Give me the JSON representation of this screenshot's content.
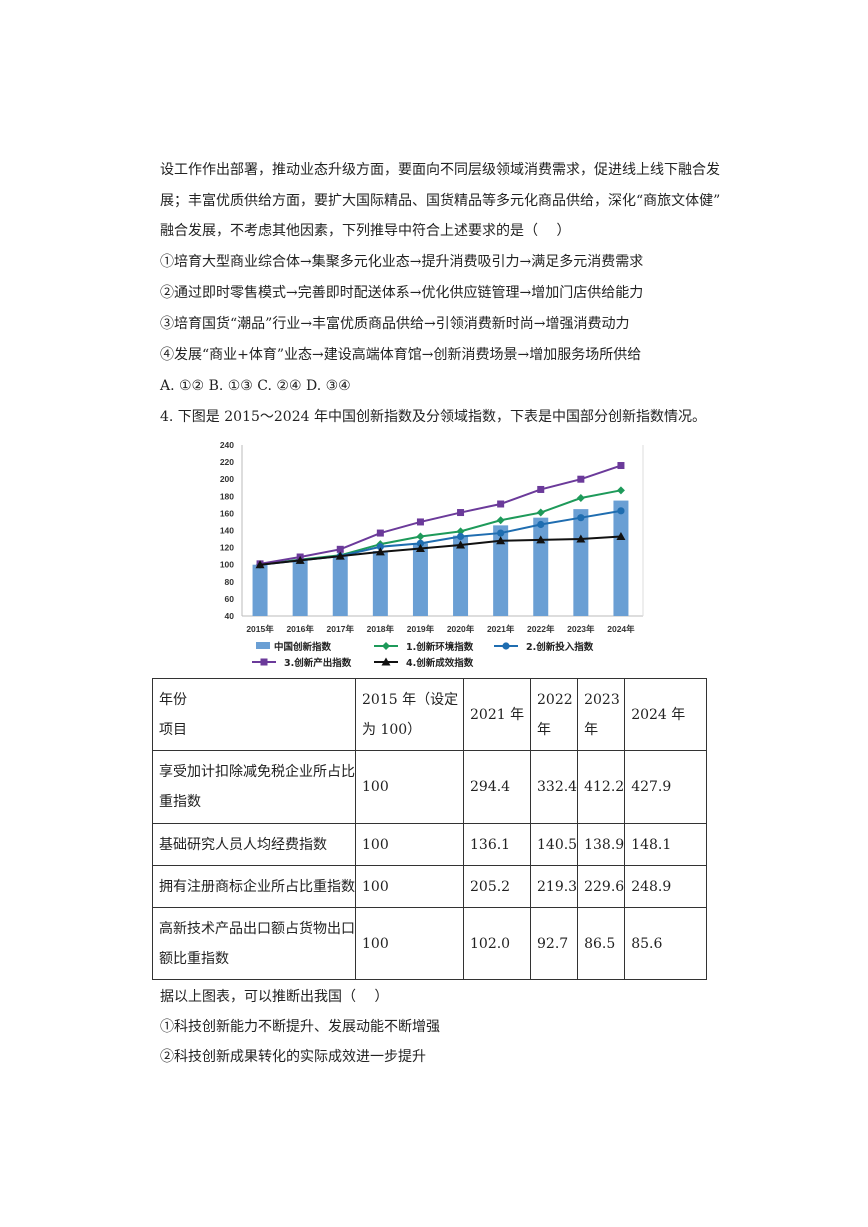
{
  "text_lines": [
    "设工作作出部署，推动业态升级方面，要面向不同层级领域消费需求，促进线上线下融合发",
    "展；丰富优质供给方面，要扩大国际精品、国货精品等多元化商品供给，深化“商旅文体健”",
    "融合发展，不考虑其他因素，下列推导中符合上述要求的是（　 ）",
    "①培育大型商业综合体→集聚多元化业态→提升消费吸引力→满足多元消费需求",
    "②通过即时零售模式→完善即时配送体系→优化供应链管理→增加门店供给能力",
    "③培育国货“潮品”行业→丰富优质商品供给→引领消费新时尚→增强消费动力",
    "④发展“商业+体育”业态→建设高端体育馆→创新消费场景→增加服务场所供给",
    "A. ①②  B. ①③  C. ②④  D. ③④",
    "4. 下图是 2015～2024 年中国创新指数及分领域指数，下表是中国部分创新指数情况。"
  ],
  "chart_data": {
    "type": "bar+line",
    "categories": [
      "2015年",
      "2016年",
      "2017年",
      "2018年",
      "2019年",
      "2020年",
      "2021年",
      "2022年",
      "2023年",
      "2024年"
    ],
    "ylim": [
      40,
      240
    ],
    "yticks": [
      40,
      60,
      80,
      100,
      120,
      140,
      160,
      180,
      200,
      220,
      240
    ],
    "grid": false,
    "legend_position": "bottom",
    "series": [
      {
        "name": "中国创新指数",
        "kind": "bar",
        "color": "#6a9fd4",
        "values": [
          100,
          105,
          110,
          116,
          125,
          134,
          146,
          155,
          165,
          175
        ]
      },
      {
        "name": "1.创新环境指数",
        "kind": "line",
        "marker": "diamond",
        "color": "#1e9a5a",
        "values": [
          100,
          106,
          111,
          124,
          133,
          139,
          152,
          161,
          178,
          187
        ]
      },
      {
        "name": "2.创新投入指数",
        "kind": "line",
        "marker": "circle",
        "color": "#1f6db0",
        "values": [
          100,
          105,
          110,
          121,
          125,
          133,
          137,
          147,
          155,
          163
        ]
      },
      {
        "name": "3.创新产出指数",
        "kind": "line",
        "marker": "square",
        "color": "#6b3a9a",
        "values": [
          101,
          109,
          118,
          137,
          150,
          161,
          171,
          188,
          200,
          216
        ]
      },
      {
        "name": "4.创新成效指数",
        "kind": "line",
        "marker": "triangle",
        "color": "#111111",
        "values": [
          100,
          105,
          110,
          115,
          119,
          123,
          128,
          129,
          130,
          133
        ]
      }
    ]
  },
  "table": {
    "header": {
      "corner_top": "年份",
      "corner_bottom": "项目",
      "cols": [
        "2015 年（设定为 100）",
        "2021 年",
        "2022 年",
        "2023 年",
        "2024 年"
      ]
    },
    "rows": [
      {
        "label": "享受加计扣除减免税企业所占比重指数",
        "values": [
          "100",
          "294.4",
          "332.4",
          "412.2",
          "427.9"
        ]
      },
      {
        "label": "基础研究人员人均经费指数",
        "values": [
          "100",
          "136.1",
          "140.5",
          "138.9",
          "148.1"
        ]
      },
      {
        "label": "拥有注册商标企业所占比重指数",
        "values": [
          "100",
          "205.2",
          "219.3",
          "229.6",
          "248.9"
        ]
      },
      {
        "label": "高新技术产品出口额占货物出口额比重指数",
        "values": [
          "100",
          "102.0",
          "92.7",
          "86.5",
          "85.6"
        ]
      }
    ]
  },
  "after_lines": [
    "据以上图表，可以推断出我国（　 ）",
    "①科技创新能力不断提升、发展动能不断增强",
    "②科技创新成果转化的实际成效进一步提升"
  ]
}
